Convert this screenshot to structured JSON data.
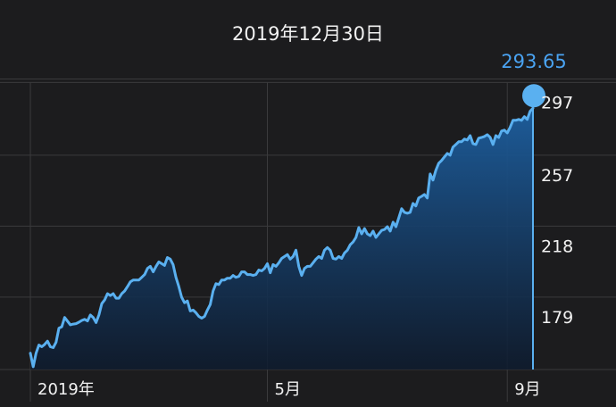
{
  "header": {
    "date": "2019年12月30日"
  },
  "selection": {
    "price": "293.65"
  },
  "colors": {
    "background": "#1c1c1e",
    "line": "#5ab0f0",
    "accent": "#4aa3f2",
    "grid": "#3a3a3c"
  },
  "chart_data": {
    "type": "area",
    "y_ticks": [
      "297",
      "257",
      "218",
      "179"
    ],
    "y_tick_values": [
      297,
      257,
      218,
      179
    ],
    "x_ticks": [
      "2019年",
      "5月",
      "9月"
    ],
    "x_tick_index": [
      0,
      83,
      167
    ],
    "ylim": [
      150,
      308
    ],
    "grid": true,
    "series": [
      {
        "values": [
          159.0,
          151.5,
          159.0,
          163.5,
          162.5,
          163.8,
          165.6,
          162.5,
          162.0,
          165.0,
          172.7,
          173.5,
          178.6,
          176.6,
          174.6,
          175.0,
          175.2,
          176.0,
          177.0,
          177.6,
          176.7,
          180.0,
          178.6,
          175.8,
          180.0,
          186.2,
          188.2,
          191.7,
          190.7,
          191.7,
          189.2,
          189.2,
          191.7,
          193.2,
          195.6,
          198.2,
          199.2,
          199.2,
          199.2,
          200.7,
          202.2,
          205.6,
          206.7,
          203.7,
          206.7,
          209.2,
          208.2,
          207.2,
          211.6,
          210.7,
          207.7,
          200.7,
          195.6,
          189.7,
          186.7,
          187.7,
          182.2,
          182.7,
          181.2,
          179.2,
          178.2,
          179.2,
          182.7,
          185.7,
          193.2,
          197.2,
          196.7,
          199.2,
          199.2,
          200.2,
          200.2,
          201.7,
          200.7,
          201.2,
          203.7,
          203.7,
          202.2,
          202.2,
          201.7,
          202.2,
          204.7,
          204.2,
          205.6,
          208.2,
          203.2,
          207.7,
          206.7,
          208.7,
          211.1,
          212.1,
          213.2,
          210.7,
          212.1,
          215.6,
          206.7,
          201.7,
          205.6,
          206.7,
          206.7,
          208.7,
          210.7,
          212.1,
          211.1,
          215.6,
          217.1,
          215.6,
          211.1,
          210.7,
          212.1,
          211.1,
          214.1,
          215.6,
          218.6,
          220.1,
          222.6,
          228.0,
          224.6,
          227.5,
          224.6,
          223.6,
          226.1,
          222.6,
          224.6,
          226.5,
          227.0,
          228.5,
          226.1,
          231.0,
          228.5,
          233.4,
          238.4,
          236.4,
          235.9,
          236.4,
          241.3,
          239.9,
          244.3,
          245.2,
          246.2,
          244.3,
          257.5,
          254.1,
          259.5,
          263.4,
          264.9,
          266.9,
          268.8,
          267.8,
          272.3,
          273.7,
          275.2,
          275.2,
          276.7,
          276.2,
          278.6,
          274.2,
          273.7,
          277.2,
          277.6,
          278.1,
          279.1,
          277.7,
          273.7,
          278.6,
          277.6,
          281.1,
          281.6,
          280.1,
          283.1,
          287.0,
          287.0,
          287.5,
          287.0,
          289.0,
          287.5,
          292.0,
          293.65
        ]
      }
    ]
  }
}
